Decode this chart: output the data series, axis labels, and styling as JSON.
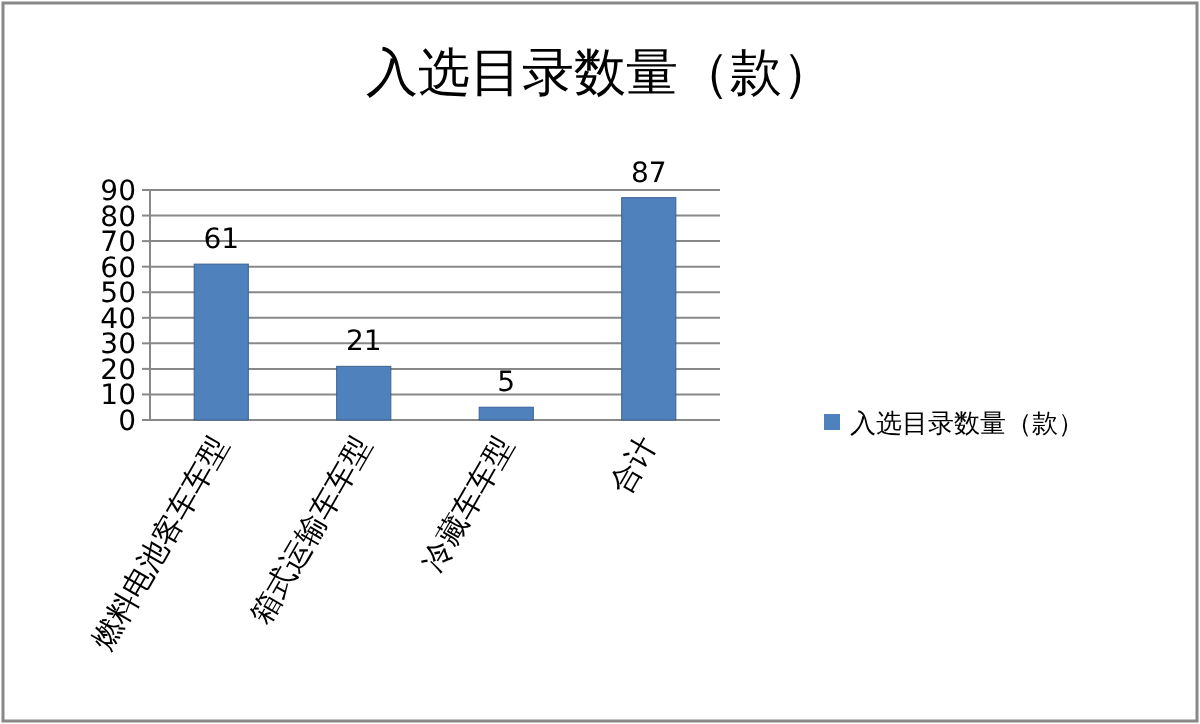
{
  "chart_data": {
    "type": "bar",
    "title": "入选目录数量（款）",
    "categories": [
      "燃料电池客车车型",
      "箱式运输车车型",
      "冷藏车车型",
      "合计"
    ],
    "series": [
      {
        "name": "入选目录数量（款）",
        "color": "#4f81bd",
        "values": [
          61,
          21,
          5,
          87
        ]
      }
    ],
    "ylim": [
      0,
      90
    ],
    "yticks": [
      0,
      10,
      20,
      30,
      40,
      50,
      60,
      70,
      80,
      90
    ],
    "grid": "y",
    "data_labels": true,
    "legend": "right"
  }
}
